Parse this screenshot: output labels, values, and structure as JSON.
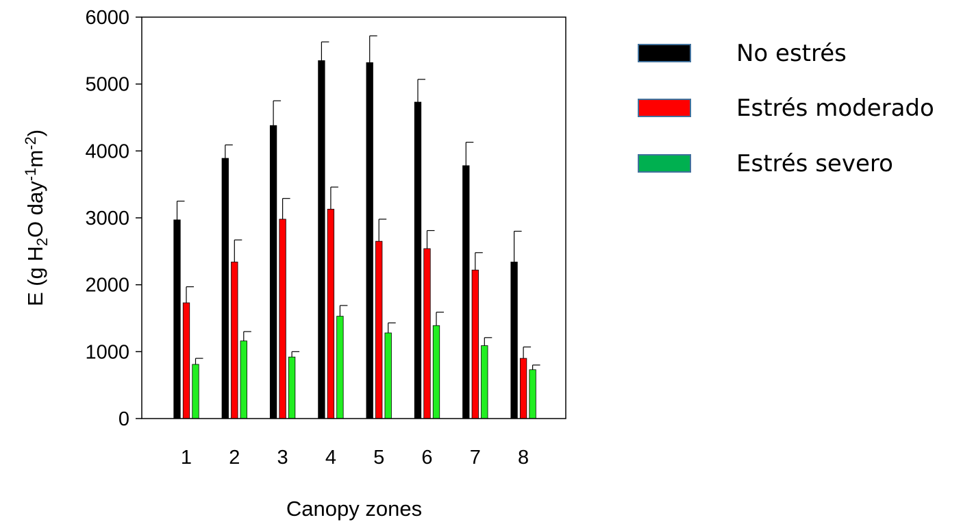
{
  "chart_data": {
    "type": "bar",
    "xlabel": "Canopy zones",
    "ylabel": {
      "parts": [
        {
          "t": "E  (g H",
          "s": "normal"
        },
        {
          "t": "2",
          "s": "sub"
        },
        {
          "t": "O day",
          "s": "normal"
        },
        {
          "t": "-1",
          "s": "sup"
        },
        {
          "t": "m",
          "s": "normal"
        },
        {
          "t": "-2",
          "s": "sup"
        },
        {
          "t": ")",
          "s": "normal"
        }
      ]
    },
    "ylim": [
      0,
      6000
    ],
    "yticks": [
      0,
      1000,
      2000,
      3000,
      4000,
      5000,
      6000
    ],
    "categories": [
      "1",
      "2",
      "3",
      "4",
      "5",
      "6",
      "7",
      "8"
    ],
    "series": [
      {
        "name": "No estrés",
        "bar_color": "#000000",
        "legend_color": "#000000",
        "values": [
          2970,
          3890,
          4380,
          5350,
          5320,
          4730,
          3780,
          2340
        ],
        "errors": [
          280,
          200,
          370,
          280,
          400,
          340,
          350,
          460
        ]
      },
      {
        "name": "Estrés moderado",
        "bar_color": "#ff0000",
        "legend_color": "#ff0000",
        "values": [
          1730,
          2340,
          2980,
          3130,
          2650,
          2540,
          2220,
          900
        ],
        "errors": [
          240,
          330,
          310,
          330,
          330,
          270,
          260,
          170
        ]
      },
      {
        "name": "Estrés severo",
        "bar_color": "#22ee22",
        "legend_color": "#00b050",
        "values": [
          810,
          1160,
          920,
          1530,
          1280,
          1390,
          1090,
          730
        ],
        "errors": [
          90,
          140,
          80,
          160,
          150,
          200,
          120,
          70
        ]
      }
    ],
    "legend_position": "right"
  }
}
